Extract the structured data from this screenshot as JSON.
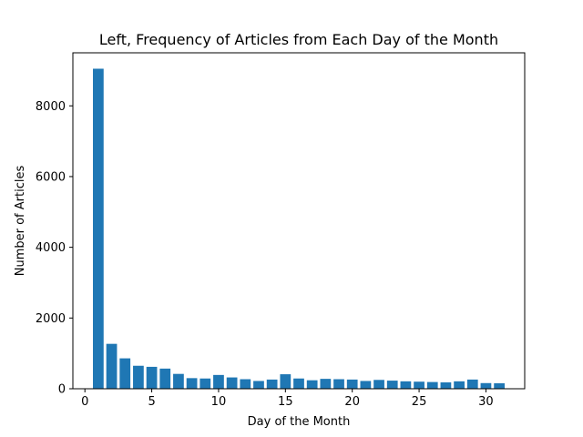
{
  "chart_data": {
    "type": "bar",
    "title": "Left, Frequency of Articles from Each Day of the Month",
    "xlabel": "Day of the Month",
    "ylabel": "Number of Articles",
    "x": [
      1,
      2,
      3,
      4,
      5,
      6,
      7,
      8,
      9,
      10,
      11,
      12,
      13,
      14,
      15,
      16,
      17,
      18,
      19,
      20,
      21,
      22,
      23,
      24,
      25,
      26,
      27,
      28,
      29,
      30,
      31
    ],
    "values": [
      9050,
      1270,
      860,
      650,
      620,
      570,
      420,
      300,
      290,
      390,
      320,
      270,
      220,
      260,
      410,
      290,
      240,
      280,
      270,
      260,
      220,
      250,
      230,
      210,
      200,
      190,
      180,
      210,
      260,
      160,
      155
    ],
    "xlim": [
      -0.9,
      32.9
    ],
    "ylim": [
      0,
      9500
    ],
    "xticks": [
      0,
      5,
      10,
      15,
      20,
      25,
      30
    ],
    "yticks": [
      0,
      2000,
      4000,
      6000,
      8000
    ],
    "bar_color": "#1f77b4",
    "grid": false,
    "legend": "none"
  }
}
